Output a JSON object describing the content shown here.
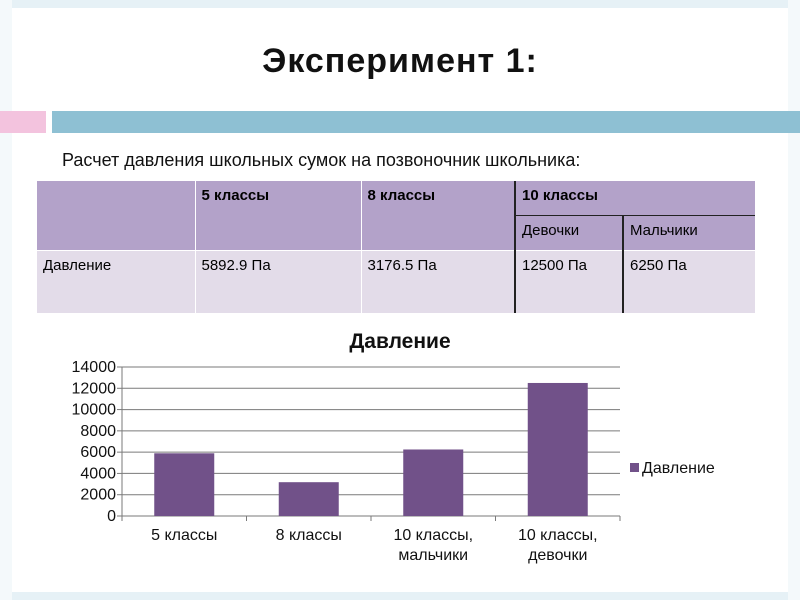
{
  "slide": {
    "title": "Эксперимент  1:",
    "subtitle": "Расчет давления школьных сумок на позвоночник школьника:"
  },
  "table": {
    "header": {
      "col1": "5 классы",
      "col2": "8 классы",
      "col3": "10 классы",
      "col3_sub1": "Девочки",
      "col3_sub2": "Мальчики"
    },
    "row": {
      "label": "Давление",
      "v5": "5892.9 Па",
      "v8": "3176.5 Па",
      "v10_girls": "12500 Па",
      "v10_boys": "6250 Па"
    }
  },
  "chart_data": {
    "type": "bar",
    "title": "Давление",
    "categories": [
      [
        "5 классы"
      ],
      [
        "8 классы"
      ],
      [
        "10 классы,",
        "мальчики"
      ],
      [
        "10 классы,",
        "девочки"
      ]
    ],
    "series": [
      {
        "name": "Давление",
        "values": [
          5892.9,
          3176.5,
          6250,
          12500
        ]
      }
    ],
    "yticks": [
      "0",
      "2000",
      "4000",
      "6000",
      "8000",
      "10000",
      "12000",
      "14000"
    ],
    "ylim": [
      0,
      14000
    ],
    "grid": true,
    "legend": "right",
    "bar_color": "#715189"
  }
}
